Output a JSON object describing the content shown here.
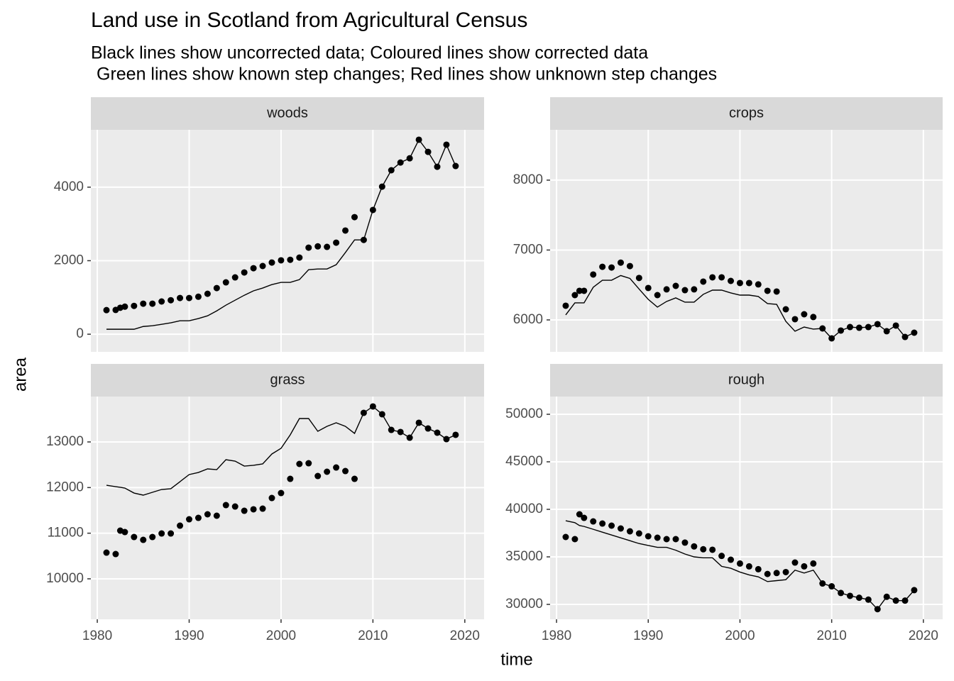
{
  "title": "Land use in Scotland from Agricultural Census",
  "subtitle": [
    "Black lines show uncorrected data; Coloured lines show corrected data",
    "Green lines show known step changes; Red lines show unknown step changes"
  ],
  "xlabel": "time",
  "ylabel": "area",
  "chart_data": [
    {
      "type": "scatter",
      "title": "woods",
      "x": [
        1981,
        1982,
        1982.5,
        1983,
        1984,
        1985,
        1986,
        1987,
        1988,
        1989,
        1990,
        1991,
        1992,
        1993,
        1994,
        1995,
        1996,
        1997,
        1998,
        1999,
        2000,
        2001,
        2002,
        2003,
        2004,
        2005,
        2006,
        2007,
        2008,
        2009,
        2010,
        2011,
        2012,
        2013,
        2014,
        2015,
        2016,
        2017,
        2018,
        2019
      ],
      "series": [
        {
          "mode": "points",
          "color": "#000000",
          "values": [
            656,
            660,
            720,
            750,
            770,
            830,
            830,
            890,
            925,
            985,
            985,
            1020,
            1100,
            1255,
            1410,
            1545,
            1680,
            1795,
            1855,
            1950,
            2010,
            2025,
            2085,
            2355,
            2390,
            2375,
            2490,
            2820,
            3185,
            2565,
            3380,
            4015,
            4460,
            4670,
            4785,
            5290,
            4960,
            4555,
            5155,
            4575
          ]
        },
        {
          "mode": "line",
          "color": "#000000",
          "values": [
            135,
            135,
            135,
            135,
            135,
            210,
            230,
            270,
            310,
            365,
            365,
            425,
            500,
            635,
            790,
            925,
            1060,
            1180,
            1255,
            1350,
            1410,
            1410,
            1485,
            1755,
            1775,
            1775,
            1890,
            2220,
            2565,
            2565,
            3380,
            4015,
            4460,
            4670,
            4785,
            5290,
            4960,
            4555,
            5155,
            4575
          ]
        }
      ],
      "xlim": [
        1979.3,
        2022.1
      ],
      "ylim": [
        -480,
        5560
      ],
      "xticks": [
        1980,
        1990,
        2000,
        2010,
        2020
      ],
      "yticks": [
        0,
        2000,
        4000
      ],
      "grid": true,
      "show_xtick_labels": false
    },
    {
      "type": "scatter",
      "title": "crops",
      "x": [
        1981,
        1982,
        1982.5,
        1983,
        1984,
        1985,
        1986,
        1987,
        1988,
        1989,
        1990,
        1991,
        1992,
        1993,
        1994,
        1995,
        1996,
        1997,
        1998,
        1999,
        2000,
        2001,
        2002,
        2003,
        2004,
        2005,
        2006,
        2007,
        2008,
        2009,
        2010,
        2011,
        2012,
        2013,
        2014,
        2015,
        2016,
        2017,
        2018,
        2019
      ],
      "series": [
        {
          "mode": "points",
          "color": "#000000",
          "values": [
            6203,
            6355,
            6416,
            6416,
            6650,
            6760,
            6750,
            6820,
            6770,
            6600,
            6457,
            6355,
            6437,
            6487,
            6426,
            6437,
            6548,
            6609,
            6609,
            6558,
            6528,
            6528,
            6508,
            6416,
            6406,
            6152,
            6010,
            6081,
            6041,
            5878,
            5736,
            5848,
            5898,
            5888,
            5898,
            5939,
            5838,
            5919,
            5756,
            5817
          ]
        },
        {
          "mode": "line",
          "color": "#000000",
          "values": [
            6071,
            6244,
            6244,
            6244,
            6467,
            6568,
            6568,
            6635,
            6594,
            6442,
            6294,
            6183,
            6264,
            6315,
            6254,
            6254,
            6366,
            6426,
            6426,
            6386,
            6355,
            6355,
            6335,
            6234,
            6223,
            5980,
            5838,
            5898,
            5868,
            5878,
            5736,
            5848,
            5898,
            5888,
            5898,
            5939,
            5838,
            5919,
            5756,
            5817
          ]
        }
      ],
      "xlim": [
        1979.3,
        2022.1
      ],
      "ylim": [
        5543,
        8720
      ],
      "xticks": [
        1980,
        1990,
        2000,
        2010,
        2020
      ],
      "yticks": [
        6000,
        7000,
        8000
      ],
      "grid": true,
      "show_xtick_labels": false
    },
    {
      "type": "scatter",
      "title": "grass",
      "x": [
        1981,
        1982,
        1982.5,
        1983,
        1984,
        1985,
        1986,
        1987,
        1988,
        1989,
        1990,
        1991,
        1992,
        1993,
        1994,
        1995,
        1996,
        1997,
        1998,
        1999,
        2000,
        2001,
        2002,
        2003,
        2004,
        2005,
        2006,
        2007,
        2008,
        2009,
        2010,
        2011,
        2012,
        2013,
        2014,
        2015,
        2016,
        2017,
        2018,
        2019
      ],
      "series": [
        {
          "mode": "points",
          "color": "#000000",
          "values": [
            10574,
            10543,
            11056,
            11025,
            10916,
            10854,
            10916,
            10994,
            10994,
            11165,
            11305,
            11336,
            11414,
            11383,
            11616,
            11585,
            11491,
            11523,
            11538,
            11771,
            11880,
            12191,
            12518,
            12533,
            12253,
            12347,
            12440,
            12362,
            12191,
            13638,
            13778,
            13607,
            13264,
            13218,
            13093,
            13420,
            13295,
            13202,
            13062,
            13156
          ]
        },
        {
          "mode": "line",
          "color": "#000000",
          "values": [
            12051,
            12020,
            12005,
            11989,
            11880,
            11834,
            11896,
            11958,
            11974,
            12129,
            12285,
            12331,
            12409,
            12393,
            12611,
            12580,
            12471,
            12487,
            12518,
            12736,
            12860,
            13156,
            13513,
            13513,
            13233,
            13342,
            13420,
            13342,
            13187,
            13638,
            13778,
            13607,
            13264,
            13218,
            13093,
            13420,
            13295,
            13202,
            13062,
            13156
          ]
        }
      ],
      "xlim": [
        1979.3,
        2022.1
      ],
      "ylim": [
        9113,
        13995
      ],
      "xticks": [
        1980,
        1990,
        2000,
        2010,
        2020
      ],
      "yticks": [
        10000,
        11000,
        12000,
        13000
      ],
      "grid": true,
      "show_xtick_labels": true
    },
    {
      "type": "scatter",
      "title": "rough",
      "x": [
        1981,
        1982,
        1982.5,
        1983,
        1984,
        1985,
        1986,
        1987,
        1988,
        1989,
        1990,
        1991,
        1992,
        1993,
        1994,
        1995,
        1996,
        1997,
        1998,
        1999,
        2000,
        2001,
        2002,
        2003,
        2004,
        2005,
        2006,
        2007,
        2008,
        2009,
        2010,
        2011,
        2012,
        2013,
        2014,
        2015,
        2016,
        2017,
        2018,
        2019
      ],
      "series": [
        {
          "mode": "points",
          "color": "#000000",
          "values": [
            37090,
            36866,
            39478,
            39104,
            38731,
            38507,
            38284,
            37985,
            37687,
            37463,
            37164,
            37015,
            36866,
            36866,
            36500,
            36100,
            35800,
            35750,
            35100,
            34700,
            34300,
            34000,
            33700,
            33200,
            33300,
            33400,
            34400,
            34000,
            34300,
            32200,
            31900,
            31200,
            30900,
            30700,
            30500,
            29500,
            30800,
            30400,
            30400,
            31500
          ]
        },
        {
          "mode": "line",
          "color": "#000000",
          "values": [
            38800,
            38600,
            38300,
            38200,
            37900,
            37600,
            37300,
            37000,
            36700,
            36400,
            36200,
            36000,
            36000,
            35700,
            35300,
            35000,
            34900,
            34900,
            34000,
            33800,
            33400,
            33100,
            32900,
            32400,
            32500,
            32600,
            33600,
            33300,
            33600,
            32200,
            31900,
            31200,
            30900,
            30700,
            30500,
            29500,
            30800,
            30400,
            30400,
            31500
          ]
        }
      ],
      "xlim": [
        1979.3,
        2022.1
      ],
      "ylim": [
        28433,
        51866
      ],
      "xticks": [
        1980,
        1990,
        2000,
        2010,
        2020
      ],
      "yticks": [
        30000,
        35000,
        40000,
        45000,
        50000
      ],
      "grid": true,
      "show_xtick_labels": true
    }
  ]
}
